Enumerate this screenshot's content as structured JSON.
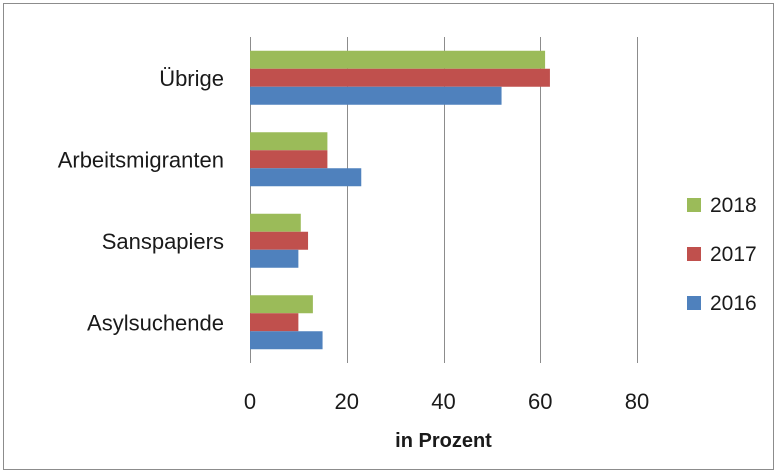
{
  "chart_data": {
    "type": "bar",
    "orientation": "horizontal",
    "categories": [
      "Übrige",
      "Arbeitsmigranten",
      "Sanspapiers",
      "Asylsuchende"
    ],
    "series": [
      {
        "name": "2018",
        "color": "#9bbb59",
        "values": [
          61,
          16,
          10.5,
          13
        ]
      },
      {
        "name": "2017",
        "color": "#c0504d",
        "values": [
          62,
          16,
          12,
          10
        ]
      },
      {
        "name": "2016",
        "color": "#4f81bd",
        "values": [
          52,
          23,
          10,
          15
        ]
      }
    ],
    "xlabel": "in Prozent",
    "ylabel": "",
    "xlim": [
      0,
      80
    ],
    "xticks": [
      "0",
      "20",
      "40",
      "60",
      "80"
    ],
    "grid": "vertical",
    "legend_position": "right"
  }
}
